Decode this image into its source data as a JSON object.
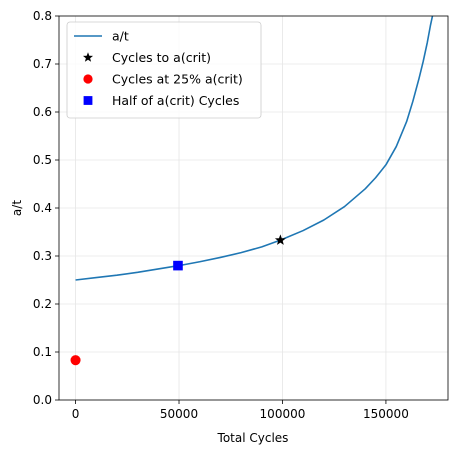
{
  "chart_data": {
    "type": "line",
    "xlabel": "Total Cycles",
    "ylabel": "a/t",
    "xlim": [
      -8000,
      180000
    ],
    "ylim": [
      0,
      0.8
    ],
    "xticks": [
      0,
      50000,
      100000,
      150000
    ],
    "xtick_labels": [
      "0",
      "50000",
      "100000",
      "150000"
    ],
    "yticks": [
      0.0,
      0.1,
      0.2,
      0.3,
      0.4,
      0.5,
      0.6,
      0.7,
      0.8
    ],
    "ytick_labels": [
      "0.0",
      "0.1",
      "0.2",
      "0.3",
      "0.4",
      "0.5",
      "0.6",
      "0.7",
      "0.8"
    ],
    "grid": true,
    "legend_position": "top-left",
    "series": [
      {
        "name": "a/t",
        "kind": "line",
        "color": "#1f77b4",
        "x": [
          0,
          10000,
          20000,
          30000,
          40000,
          50000,
          60000,
          70000,
          80000,
          90000,
          99000,
          110000,
          120000,
          130000,
          140000,
          145000,
          150000,
          155000,
          160000,
          163000,
          166000,
          168000,
          170000,
          171500,
          172500
        ],
        "y": [
          0.25,
          0.255,
          0.26,
          0.266,
          0.273,
          0.28,
          0.288,
          0.297,
          0.307,
          0.319,
          0.333,
          0.353,
          0.375,
          0.403,
          0.44,
          0.463,
          0.49,
          0.528,
          0.58,
          0.622,
          0.67,
          0.705,
          0.745,
          0.78,
          0.8
        ]
      },
      {
        "name": "Cycles to a(crit)",
        "kind": "marker",
        "marker": "star",
        "color": "#000000",
        "x": [
          99000
        ],
        "y": [
          0.333
        ]
      },
      {
        "name": "Cycles at 25% a(crit)",
        "kind": "marker",
        "marker": "circle",
        "color": "#ff0000",
        "x": [
          0
        ],
        "y": [
          0.083
        ]
      },
      {
        "name": "Half of a(crit) Cycles",
        "kind": "marker",
        "marker": "square",
        "color": "#0000ff",
        "x": [
          49500
        ],
        "y": [
          0.28
        ]
      }
    ]
  }
}
